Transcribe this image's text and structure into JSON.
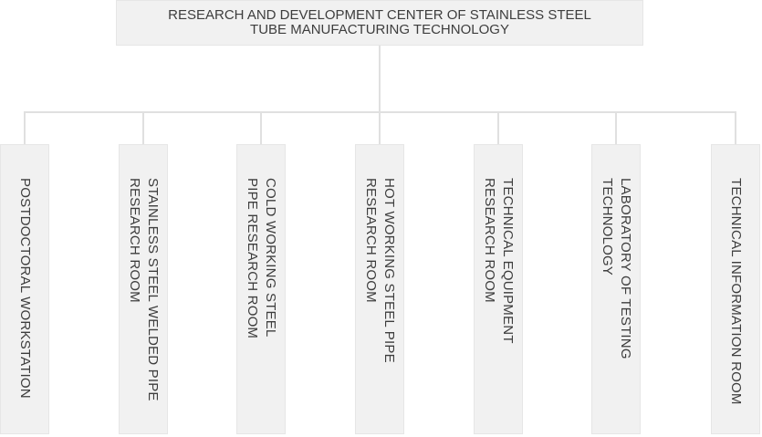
{
  "diagram": {
    "type": "org-chart",
    "root": {
      "label": "RESEARCH AND DEVELOPMENT CENTER OF STAINLESS STEEL\nTUBE MANUFACTURING TECHNOLOGY"
    },
    "children": [
      {
        "label": "POSTDOCTORAL WORKSTATION"
      },
      {
        "label": "STAINLESS STEEL WELDED PIPE\nRESEARCH ROOM"
      },
      {
        "label": "COLD WORKING STEEL\nPIPE RESEARCH ROOM"
      },
      {
        "label": "HOT WORKING STEEL PIPE\nRESEARCH ROOM"
      },
      {
        "label": "TECHNICAL EQUIPMENT\nRESEARCH ROOM"
      },
      {
        "label": "LABORATORY OF TESTING\nTECHNOLOGY"
      },
      {
        "label": "TECHNICAL INFORMATION ROOM"
      }
    ],
    "colors": {
      "box_fill": "#f1f1f1",
      "box_border": "#e6e6e6",
      "connector": "#e0e0e0",
      "text": "#3d3d3d",
      "background": "#ffffff"
    }
  }
}
